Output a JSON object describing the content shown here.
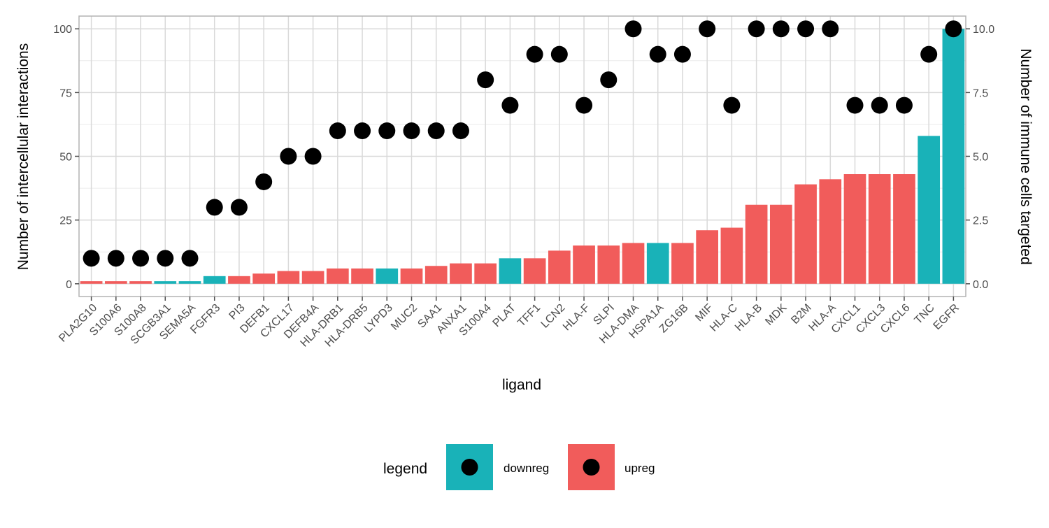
{
  "chart_data": {
    "type": "bar",
    "title": "",
    "xlabel": "ligand",
    "ylabel": "Number of intercellular interactions",
    "y2label": "Number of immune cells targeted",
    "ylim": [
      -5,
      105
    ],
    "y_ticks": [
      "0",
      "25",
      "50",
      "75",
      "100"
    ],
    "y2lim": [
      -0.5,
      10.5
    ],
    "y2_ticks": [
      "0.0",
      "2.5",
      "5.0",
      "7.5",
      "10.0"
    ],
    "grid": true,
    "legend_position": "bottom",
    "legend": {
      "title": "legend",
      "entries": [
        {
          "label": "downreg",
          "color": "#19B2B8"
        },
        {
          "label": "upreg",
          "color": "#F15C5B"
        }
      ]
    },
    "point_color": "#000000",
    "categories": [
      "PLA2G10",
      "S100A6",
      "S100A8",
      "SCGB3A1",
      "SEMA5A",
      "FGFR3",
      "PI3",
      "DEFB1",
      "CXCL17",
      "DEFB4A",
      "HLA-DRB1",
      "HLA-DRB5",
      "LYPD3",
      "MUC2",
      "SAA1",
      "ANXA1",
      "S100A4",
      "PLAT",
      "TFF1",
      "LCN2",
      "HLA-F",
      "SLPI",
      "HLA-DMA",
      "HSPA1A",
      "ZG16B",
      "MIF",
      "HLA-C",
      "HLA-B",
      "MDK",
      "B2M",
      "HLA-A",
      "CXCL1",
      "CXCL3",
      "CXCL6",
      "TNC",
      "EGFR"
    ],
    "bar_values": [
      1,
      1,
      1,
      1,
      1,
      3,
      3,
      4,
      5,
      5,
      6,
      6,
      6,
      6,
      7,
      8,
      8,
      10,
      10,
      13,
      15,
      15,
      16,
      16,
      16,
      21,
      22,
      31,
      31,
      39,
      41,
      43,
      43,
      43,
      58,
      100
    ],
    "bar_groups": [
      "upreg",
      "upreg",
      "upreg",
      "downreg",
      "downreg",
      "downreg",
      "upreg",
      "upreg",
      "upreg",
      "upreg",
      "upreg",
      "upreg",
      "downreg",
      "upreg",
      "upreg",
      "upreg",
      "upreg",
      "downreg",
      "upreg",
      "upreg",
      "upreg",
      "upreg",
      "upreg",
      "downreg",
      "upreg",
      "upreg",
      "upreg",
      "upreg",
      "upreg",
      "upreg",
      "upreg",
      "upreg",
      "upreg",
      "upreg",
      "downreg",
      "downreg"
    ],
    "point_values": [
      1,
      1,
      1,
      1,
      1,
      3,
      3,
      4,
      5,
      5,
      6,
      6,
      6,
      6,
      6,
      6,
      8,
      7,
      9,
      9,
      7,
      8,
      10,
      9,
      9,
      10,
      7,
      10,
      10,
      10,
      10,
      7,
      7,
      7,
      9,
      10
    ]
  }
}
